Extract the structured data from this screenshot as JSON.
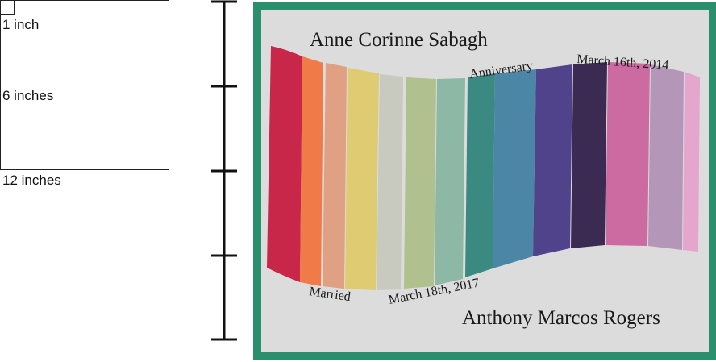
{
  "size_legend": {
    "labels": [
      "1 inch",
      "6 inches",
      "12 inches"
    ]
  },
  "panel": {
    "name_top": "Anne Corinne Sabagh",
    "name_bottom": "Anthony Marcos Rogers",
    "label_anniversary": "Anniversary",
    "label_anniversary_date": "March 16th, 2014",
    "label_married": "Married",
    "label_married_date": "March 18th, 2017",
    "colors": {
      "frame": "#2a8f6c",
      "background": "#dcdcdc"
    },
    "stripe_colors": [
      "#c8274a",
      "#f07b48",
      "#e0a084",
      "#dfcc72",
      "#c8cac0",
      "#b0c08e",
      "#8db8a6",
      "#3a8a82",
      "#4c86a6",
      "#51428c",
      "#3b2a52",
      "#cc6aa2",
      "#b497b8",
      "#e4a6cc"
    ]
  }
}
